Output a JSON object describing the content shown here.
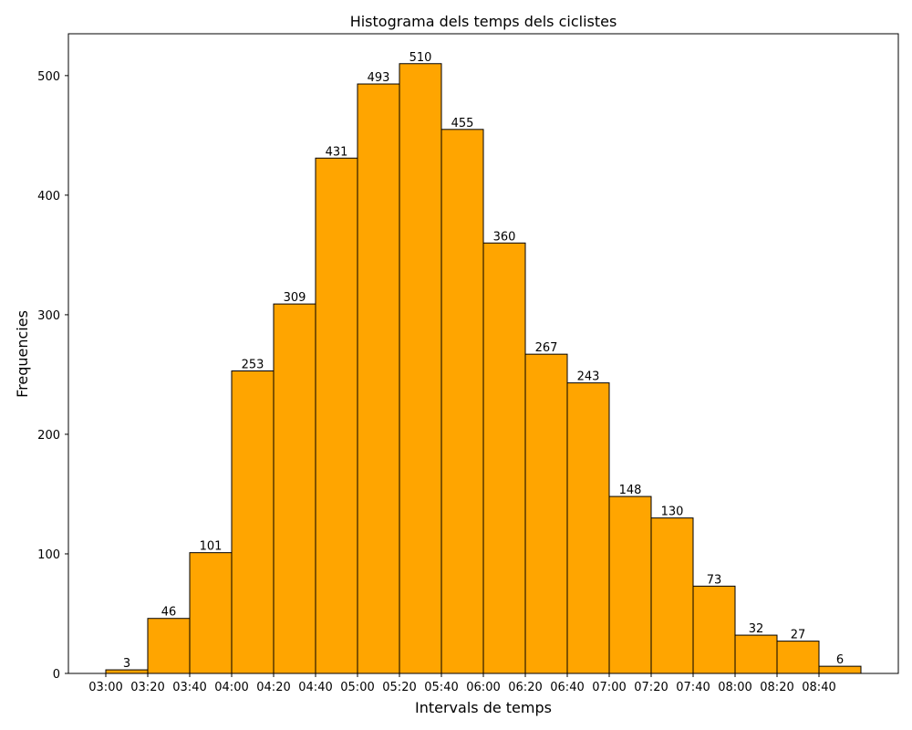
{
  "chart_data": {
    "type": "bar",
    "title": "Histograma dels temps dels ciclistes",
    "xlabel": "Intervals de temps",
    "ylabel": "Frequencies",
    "bin_edges": [
      "03:00",
      "03:20",
      "03:40",
      "04:00",
      "04:20",
      "04:40",
      "05:00",
      "05:20",
      "05:40",
      "06:00",
      "06:20",
      "06:40",
      "07:00",
      "07:20",
      "07:40",
      "08:00",
      "08:20",
      "08:40"
    ],
    "values": [
      3,
      46,
      101,
      253,
      309,
      431,
      493,
      510,
      455,
      360,
      267,
      243,
      148,
      130,
      73,
      32,
      27,
      6
    ],
    "ylim": [
      0,
      535
    ],
    "yticks": [
      0,
      100,
      200,
      300,
      400,
      500
    ],
    "grid": false,
    "colors": {
      "bar": "#FFA500",
      "edge": "#000000"
    }
  }
}
